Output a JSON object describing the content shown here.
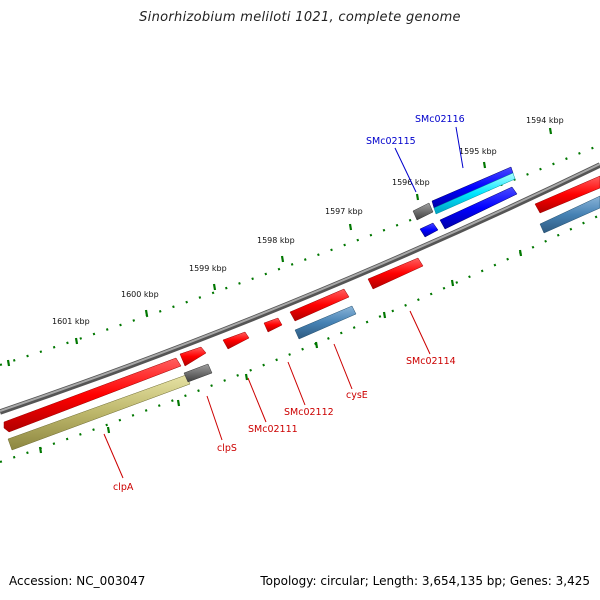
{
  "title": "Sinorhizobium meliloti 1021, complete genome",
  "footer": {
    "accession": "Accession: NC_003047",
    "summary": "Topology: circular; Length: 3,654,135 bp; Genes: 3,425"
  },
  "kbp_labels": [
    "1594 kbp",
    "1595 kbp",
    "1596 kbp",
    "1597 kbp",
    "1598 kbp",
    "1599 kbp",
    "1600 kbp",
    "1601 kbp"
  ],
  "gene_labels": {
    "SMc02116": "SMc02116",
    "SMc02115": "SMc02115",
    "SMc02114": "SMc02114",
    "cysE": "cysE",
    "SMc02112": "SMc02112",
    "SMc02111": "SMc02111",
    "clpS": "clpS",
    "clpA": "clpA"
  },
  "colors": {
    "backbone": "#808080",
    "gene_forward": "#ff0000",
    "gene_highlight": "#0000ff",
    "cds": "#4682b4",
    "cds_highlight": "#00e5ff",
    "cds_gray": "#707070",
    "cds_olive": "#bdb76b",
    "tick": "#007700",
    "label_red": "#cc0000",
    "label_blue": "#0000cc"
  }
}
